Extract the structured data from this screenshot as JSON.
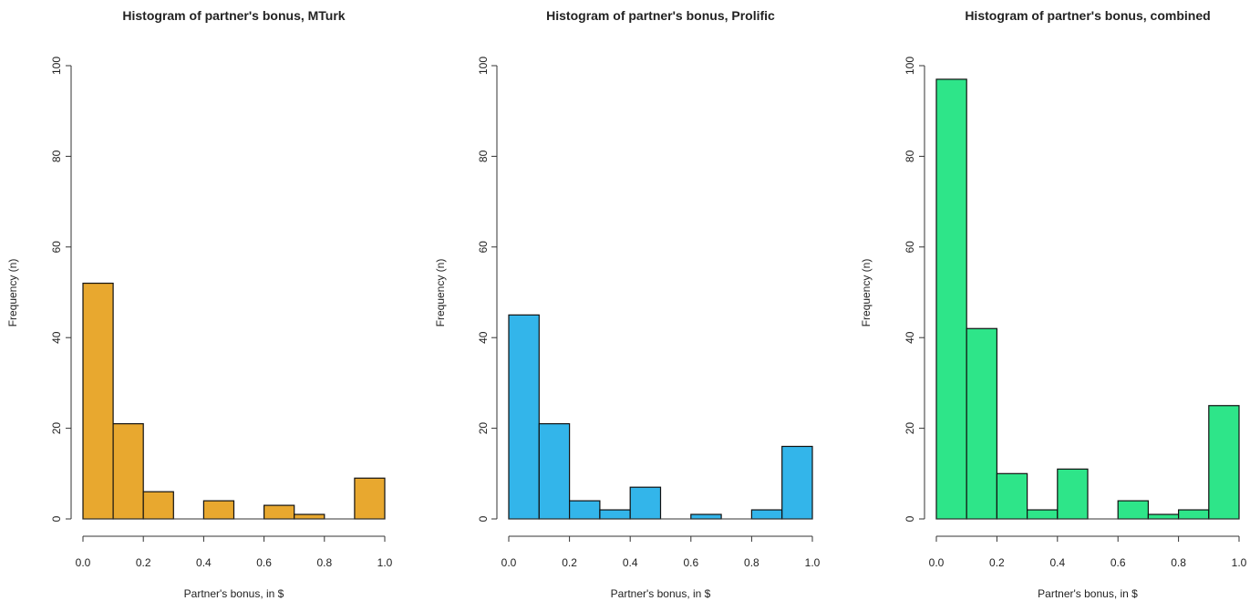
{
  "chart_data": [
    {
      "type": "bar",
      "title": "Histogram of partner's bonus, MTurk",
      "xlabel": "Partner's bonus, in $",
      "ylabel": "Frequency (n)",
      "bin_edges": [
        0.0,
        0.1,
        0.2,
        0.3,
        0.4,
        0.5,
        0.6,
        0.7,
        0.8,
        0.9,
        1.0
      ],
      "values": [
        52,
        21,
        6,
        0,
        4,
        0,
        3,
        1,
        0,
        9
      ],
      "xlim": [
        0,
        1
      ],
      "ylim": [
        0,
        100
      ],
      "xticks": [
        "0.0",
        "0.2",
        "0.4",
        "0.6",
        "0.8",
        "1.0"
      ],
      "yticks": [
        "0",
        "20",
        "40",
        "60",
        "80",
        "100"
      ],
      "color": "#E8A82F",
      "grid": false
    },
    {
      "type": "bar",
      "title": "Histogram of partner's bonus, Prolific",
      "xlabel": "Partner's bonus, in $",
      "ylabel": "Frequency (n)",
      "bin_edges": [
        0.0,
        0.1,
        0.2,
        0.3,
        0.4,
        0.5,
        0.6,
        0.7,
        0.8,
        0.9,
        1.0
      ],
      "values": [
        45,
        21,
        4,
        2,
        7,
        0,
        1,
        0,
        2,
        16
      ],
      "xlim": [
        0,
        1
      ],
      "ylim": [
        0,
        100
      ],
      "xticks": [
        "0.0",
        "0.2",
        "0.4",
        "0.6",
        "0.8",
        "1.0"
      ],
      "yticks": [
        "0",
        "20",
        "40",
        "60",
        "80",
        "100"
      ],
      "color": "#33B5EA",
      "grid": false
    },
    {
      "type": "bar",
      "title": "Histogram of partner's bonus, combined",
      "xlabel": "Partner's bonus, in $",
      "ylabel": "Frequency (n)",
      "bin_edges": [
        0.0,
        0.1,
        0.2,
        0.3,
        0.4,
        0.5,
        0.6,
        0.7,
        0.8,
        0.9,
        1.0
      ],
      "values": [
        97,
        42,
        10,
        2,
        11,
        0,
        4,
        1,
        2,
        25
      ],
      "xlim": [
        0,
        1
      ],
      "ylim": [
        0,
        100
      ],
      "xticks": [
        "0.0",
        "0.2",
        "0.4",
        "0.6",
        "0.8",
        "1.0"
      ],
      "yticks": [
        "0",
        "20",
        "40",
        "60",
        "80",
        "100"
      ],
      "color": "#2EE589",
      "grid": false
    }
  ]
}
